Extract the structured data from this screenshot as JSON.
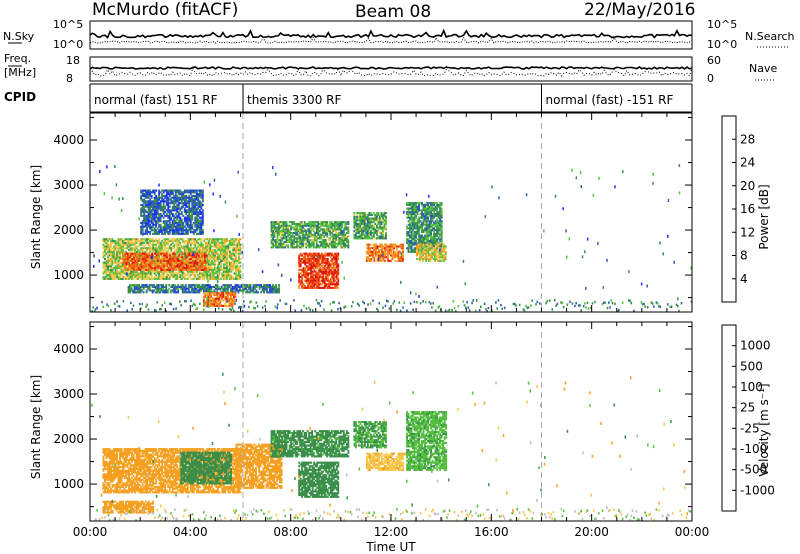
{
  "header": {
    "station": "McMurdo (fitACF)",
    "beam": "Beam 08",
    "date": "22/May/2016"
  },
  "summary_panel": {
    "nsky_label": "N.Sky",
    "nsky_ticks": [
      "10^5",
      "10^0"
    ],
    "nsearch_label": "N.Search",
    "nsearch_ticks": [
      "10^5",
      "10^0"
    ],
    "freq_label": "Freq.",
    "freq_unit": "[MHz]",
    "freq_ticks": [
      "18",
      "8"
    ],
    "nave_label": "Nave",
    "nave_ticks": [
      "60",
      "0"
    ],
    "cpid_label": "CPID",
    "cpid_segments": [
      {
        "label": "normal (fast) 151 RF",
        "start_hr": 0,
        "end_hr": 6.1
      },
      {
        "label": "themis 3300 RF",
        "start_hr": 6.1,
        "end_hr": 18.0
      },
      {
        "label": "normal (fast) -151 RF",
        "start_hr": 18.0,
        "end_hr": 24
      }
    ]
  },
  "time_axis": {
    "xlabel": "Time UT",
    "tick_labels": [
      "00:00",
      "04:00",
      "08:00",
      "12:00",
      "16:00",
      "20:00",
      "00:00"
    ],
    "tick_hours": [
      0,
      4,
      8,
      12,
      16,
      20,
      24
    ],
    "xlim": [
      0,
      24
    ]
  },
  "colors": {
    "power": [
      "#1f30ff",
      "#2d5fb0",
      "#3b8f4a",
      "#55c040",
      "#f2c94c",
      "#f59a1c",
      "#ef5a14",
      "#e0140e"
    ],
    "velocity": [
      "#e0140e",
      "#ef5a14",
      "#f5a020",
      "#f5c64a",
      "#bdbdbd",
      "#55c040",
      "#3b8f4a",
      "#2d5fb0",
      "#1f30ff"
    ]
  },
  "chart_data": [
    {
      "type": "heatmap",
      "title": "",
      "xlabel": "Time UT",
      "ylabel": "Slant Range [km]",
      "xlim": [
        0,
        24
      ],
      "ylim": [
        180,
        4600
      ],
      "yticks": [
        1000,
        2000,
        3000,
        4000
      ],
      "colorbar": {
        "label": "Power [dB]",
        "ticks": [
          "4",
          "8",
          "12",
          "16",
          "20",
          "24",
          "28"
        ],
        "range": [
          0,
          32
        ]
      },
      "regions": [
        {
          "t0": 0.5,
          "t1": 6.0,
          "r0": 900,
          "r1": 1800,
          "value": 16
        },
        {
          "t0": 1.3,
          "t1": 4.6,
          "r0": 1100,
          "r1": 1500,
          "value": 26
        },
        {
          "t0": 1.5,
          "t1": 7.5,
          "r0": 600,
          "r1": 800,
          "value": 8
        },
        {
          "t0": 2.0,
          "t1": 4.5,
          "r0": 1900,
          "r1": 2900,
          "value": 6
        },
        {
          "t0": 4.5,
          "t1": 5.8,
          "r0": 300,
          "r1": 600,
          "value": 24
        },
        {
          "t0": 7.2,
          "t1": 10.3,
          "r0": 1600,
          "r1": 2200,
          "value": 12
        },
        {
          "t0": 8.3,
          "t1": 9.9,
          "r0": 700,
          "r1": 1500,
          "value": 28
        },
        {
          "t0": 10.5,
          "t1": 11.8,
          "r0": 1800,
          "r1": 2400,
          "value": 12
        },
        {
          "t0": 11.0,
          "t1": 12.5,
          "r0": 1300,
          "r1": 1700,
          "value": 24
        },
        {
          "t0": 12.6,
          "t1": 14.0,
          "r0": 1500,
          "r1": 2600,
          "value": 10
        },
        {
          "t0": 13.0,
          "t1": 14.2,
          "r0": 1300,
          "r1": 1700,
          "value": 18
        }
      ]
    },
    {
      "type": "heatmap",
      "title": "",
      "xlabel": "Time UT",
      "ylabel": "Slant Range [km]",
      "xlim": [
        0,
        24
      ],
      "ylim": [
        180,
        4600
      ],
      "yticks": [
        1000,
        2000,
        3000,
        4000
      ],
      "colorbar": {
        "label": "Velocity [m s⁻¹]",
        "ticks": [
          "1000",
          "500",
          "100",
          "25",
          "-25",
          "-100",
          "-500",
          "-1000"
        ]
      },
      "regions": [
        {
          "t0": 0.5,
          "t1": 6.0,
          "r0": 800,
          "r1": 1800,
          "value": -300
        },
        {
          "t0": 3.6,
          "t1": 5.6,
          "r0": 1000,
          "r1": 1700,
          "value": 200
        },
        {
          "t0": 5.8,
          "t1": 7.6,
          "r0": 900,
          "r1": 1900,
          "value": -200
        },
        {
          "t0": 7.2,
          "t1": 10.3,
          "r0": 1600,
          "r1": 2200,
          "value": 150
        },
        {
          "t0": 8.3,
          "t1": 9.9,
          "r0": 700,
          "r1": 1500,
          "value": 300
        },
        {
          "t0": 10.5,
          "t1": 11.8,
          "r0": 1800,
          "r1": 2400,
          "value": 100
        },
        {
          "t0": 11.0,
          "t1": 12.5,
          "r0": 1300,
          "r1": 1700,
          "value": -80
        },
        {
          "t0": 12.6,
          "t1": 14.2,
          "r0": 1300,
          "r1": 2600,
          "value": 80
        },
        {
          "t0": 0.5,
          "t1": 2.5,
          "r0": 350,
          "r1": 600,
          "value": -200
        }
      ]
    }
  ]
}
